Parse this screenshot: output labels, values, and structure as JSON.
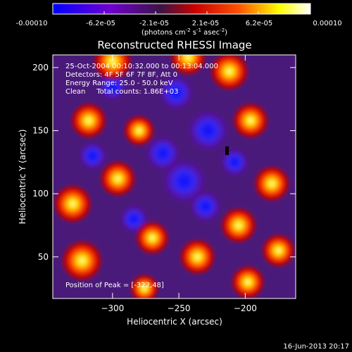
{
  "colorbar": {
    "tick_labels": [
      "-0.00010",
      "-6.2e-05",
      "-2.1e-05",
      "2.1e-05",
      "6.2e-05",
      "0.00010"
    ],
    "unit_parts": [
      "(photons cm",
      "-2",
      " s",
      "-1",
      " asec",
      "-2",
      ")"
    ]
  },
  "info": {
    "line1": "25-Oct-2004 00:10:32.000 to 00:13:04.000",
    "line2": "Detectors: 4F 5F 6F 7F 8F, Att 0",
    "line3": "Energy Range: 25.0 - 50.0 keV",
    "line4": "Clean     Total counts: 1.86E+03",
    "peak": "Position of Peak = [-322,48]"
  },
  "footer": {
    "date": "16-Jun-2013 20:17"
  },
  "colors": {
    "background": "#000000",
    "foreground": "#ffffff",
    "colormap": [
      "#0000ff",
      "#7000d0",
      "#3c1446",
      "#c80000",
      "#ff5000",
      "#ffff00",
      "#ffffff"
    ]
  },
  "chart_data": {
    "type": "heatmap",
    "title": "Reconstructed RHESSI Image",
    "xlabel": "Heliocentric X (arcsec)",
    "ylabel": "Heliocentric Y (arcsec)",
    "xlim": [
      -345,
      -162
    ],
    "ylim": [
      17,
      210
    ],
    "x_ticks": [
      -300,
      -250,
      -200
    ],
    "y_ticks": [
      50,
      100,
      150,
      200
    ],
    "colorbar_range": [
      -0.0001,
      0.0001
    ],
    "peak_position": [
      -322,
      48
    ],
    "hot_spots": [
      {
        "x": -323,
        "y": 47,
        "value": 0.0001
      },
      {
        "x": -330,
        "y": 92,
        "value": 9e-05
      },
      {
        "x": -300,
        "y": 205,
        "value": 9e-05
      },
      {
        "x": -243,
        "y": 208,
        "value": 8e-05
      },
      {
        "x": -212,
        "y": 197,
        "value": 9e-05
      },
      {
        "x": -296,
        "y": 112,
        "value": 8e-05
      },
      {
        "x": -318,
        "y": 158,
        "value": 8e-05
      },
      {
        "x": -270,
        "y": 65,
        "value": 7e-05
      },
      {
        "x": -236,
        "y": 50,
        "value": 8e-05
      },
      {
        "x": -196,
        "y": 158,
        "value": 8e-05
      },
      {
        "x": -180,
        "y": 108,
        "value": 8e-05
      },
      {
        "x": -205,
        "y": 75,
        "value": 8e-05
      },
      {
        "x": -198,
        "y": 30,
        "value": 7e-05
      },
      {
        "x": -280,
        "y": 150,
        "value": 6e-05
      },
      {
        "x": -175,
        "y": 55,
        "value": 7e-05
      },
      {
        "x": -276,
        "y": 25,
        "value": 5e-05
      }
    ],
    "cold_spots": [
      {
        "x": -246,
        "y": 110,
        "value": -9e-05
      },
      {
        "x": -228,
        "y": 150,
        "value": -8e-05
      },
      {
        "x": -262,
        "y": 132,
        "value": -6e-05
      },
      {
        "x": -252,
        "y": 180,
        "value": -6e-05
      },
      {
        "x": -230,
        "y": 90,
        "value": -5e-05
      },
      {
        "x": -315,
        "y": 130,
        "value": -4e-05
      },
      {
        "x": -284,
        "y": 80,
        "value": -4e-05
      },
      {
        "x": -300,
        "y": 185,
        "value": -4e-05
      },
      {
        "x": -208,
        "y": 125,
        "value": -4e-05
      }
    ]
  }
}
